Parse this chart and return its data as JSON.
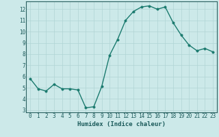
{
  "x": [
    0,
    1,
    2,
    3,
    4,
    5,
    6,
    7,
    8,
    9,
    10,
    11,
    12,
    13,
    14,
    15,
    16,
    17,
    18,
    19,
    20,
    21,
    22,
    23
  ],
  "y": [
    5.8,
    4.9,
    4.7,
    5.3,
    4.9,
    4.9,
    4.8,
    3.2,
    3.3,
    5.1,
    7.9,
    9.3,
    11.0,
    11.8,
    12.2,
    12.3,
    12.0,
    12.2,
    10.8,
    9.7,
    8.8,
    8.3,
    8.5,
    8.2
  ],
  "line_color": "#1a7a6e",
  "marker_color": "#1a7a6e",
  "bg_color": "#cce9e9",
  "grid_color": "#b0d4d4",
  "xlabel": "Humidex (Indice chaleur)",
  "ylim": [
    2.8,
    12.7
  ],
  "xlim": [
    -0.5,
    23.5
  ],
  "yticks": [
    3,
    4,
    5,
    6,
    7,
    8,
    9,
    10,
    11,
    12
  ],
  "xticks": [
    0,
    1,
    2,
    3,
    4,
    5,
    6,
    7,
    8,
    9,
    10,
    11,
    12,
    13,
    14,
    15,
    16,
    17,
    18,
    19,
    20,
    21,
    22,
    23
  ],
  "xtick_labels": [
    "0",
    "1",
    "2",
    "3",
    "4",
    "5",
    "6",
    "7",
    "8",
    "9",
    "10",
    "11",
    "12",
    "13",
    "14",
    "15",
    "16",
    "17",
    "18",
    "19",
    "20",
    "21",
    "22",
    "23"
  ],
  "line_width": 1.0,
  "marker_size": 2.5,
  "tick_fontsize": 5.5,
  "xlabel_fontsize": 6.5
}
